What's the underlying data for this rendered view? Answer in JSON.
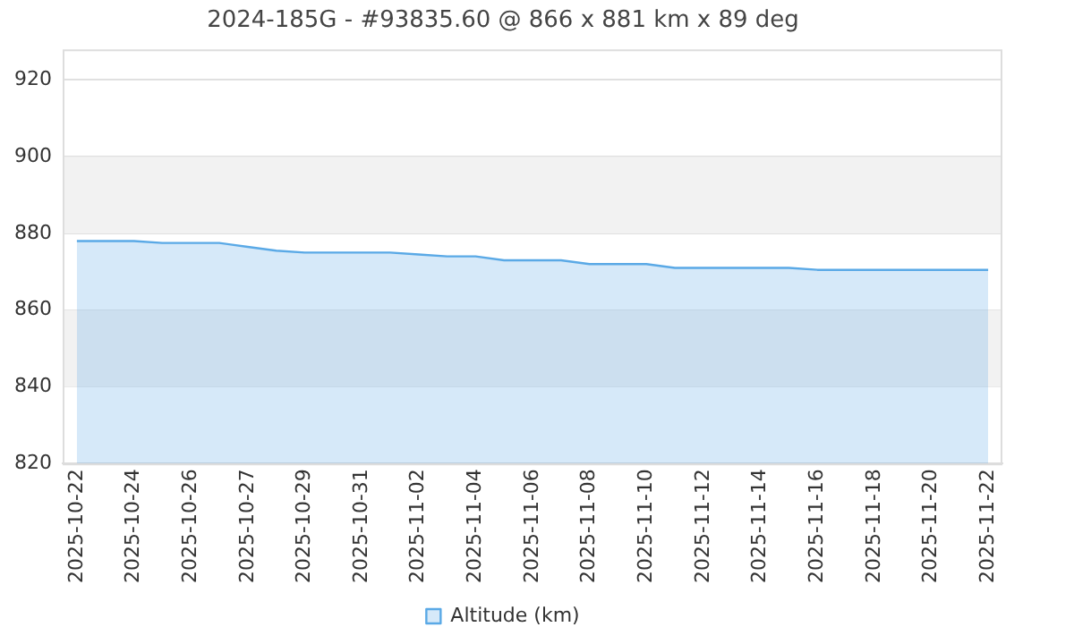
{
  "chart_data": {
    "type": "area",
    "title": "2024-185G - #93835.60 @ 866 x 881 km x 89 deg",
    "categories": [
      "2025-10-22",
      null,
      "2025-10-24",
      null,
      "2025-10-26",
      null,
      "2025-10-27",
      null,
      "2025-10-29",
      null,
      "2025-10-31",
      null,
      "2025-11-02",
      null,
      "2025-11-04",
      null,
      "2025-11-06",
      null,
      "2025-11-08",
      null,
      "2025-11-10",
      null,
      "2025-11-12",
      null,
      "2025-11-14",
      null,
      "2025-11-16",
      null,
      "2025-11-18",
      null,
      "2025-11-20",
      null,
      "2025-11-22"
    ],
    "series": [
      {
        "name": "Altitude (km)",
        "color": "#5aa9e6",
        "values": [
          878,
          878,
          878,
          877.5,
          877.5,
          877.5,
          876.5,
          875.5,
          875,
          875,
          875,
          875,
          874.5,
          874,
          874,
          873,
          873,
          873,
          872,
          872,
          872,
          871,
          871,
          871,
          871,
          871,
          870.5,
          870.5,
          870.5,
          870.5,
          870.5,
          870.5,
          870.5
        ]
      }
    ],
    "ylim": [
      820,
      928
    ],
    "yticks": [
      820,
      840,
      860,
      880,
      900,
      920
    ],
    "bands": [
      {
        "axis": "y",
        "from": 840,
        "to": 860,
        "color": "#f2f2f2"
      },
      {
        "axis": "y",
        "from": 880,
        "to": 900,
        "color": "#f2f2f2"
      }
    ],
    "grid": "y",
    "legend": "bottom"
  }
}
